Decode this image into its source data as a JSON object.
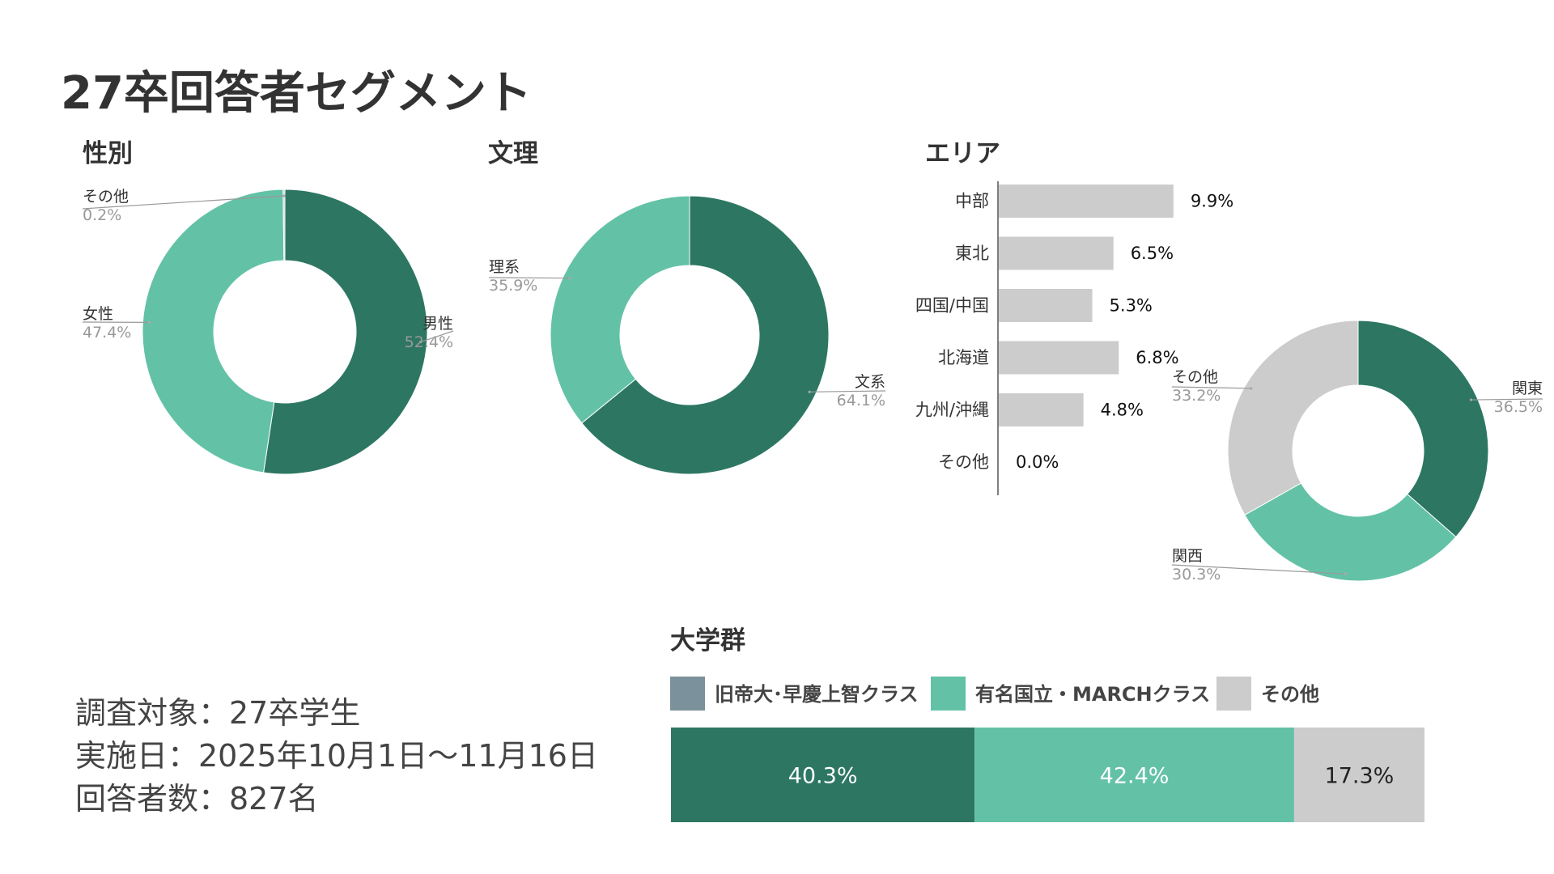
{
  "page": {
    "title": "27卒回答者セグメント"
  },
  "info": {
    "target": "調査対象：27卒学生",
    "date": "実施日：2025年10月1日〜11月16日",
    "count": "回答者数：827名"
  },
  "colors": {
    "dark": "#2d7762",
    "light": "#63c2a6",
    "grey": "#cccccc",
    "slate": "#7b919b"
  },
  "chart_data": [
    {
      "id": "gender",
      "type": "pie",
      "title": "性別",
      "slices": [
        {
          "label": "男性",
          "value": 52.4,
          "pct": "52.4%",
          "color": "#2d7762"
        },
        {
          "label": "女性",
          "value": 47.4,
          "pct": "47.4%",
          "color": "#63c2a6"
        },
        {
          "label": "その他",
          "value": 0.2,
          "pct": "0.2%",
          "color": "#cccccc"
        }
      ]
    },
    {
      "id": "major",
      "type": "pie",
      "title": "文理",
      "slices": [
        {
          "label": "文系",
          "value": 64.1,
          "pct": "64.1%",
          "color": "#2d7762"
        },
        {
          "label": "理系",
          "value": 35.9,
          "pct": "35.9%",
          "color": "#63c2a6"
        }
      ]
    },
    {
      "id": "area-bar",
      "type": "bar",
      "title": "エリア",
      "categories": [
        "中部",
        "東北",
        "四国/中国",
        "北海道",
        "九州/沖縄",
        "その他"
      ],
      "values": [
        9.9,
        6.5,
        5.3,
        6.8,
        4.8,
        0.0
      ],
      "value_labels": [
        "9.9%",
        "6.5%",
        "5.3%",
        "6.8%",
        "4.8%",
        "0.0%"
      ],
      "color": "#cccccc"
    },
    {
      "id": "area-pie",
      "type": "pie",
      "title": "",
      "slices": [
        {
          "label": "関東",
          "value": 36.5,
          "pct": "36.5%",
          "color": "#2d7762"
        },
        {
          "label": "関西",
          "value": 30.3,
          "pct": "30.3%",
          "color": "#63c2a6"
        },
        {
          "label": "その他",
          "value": 33.2,
          "pct": "33.2%",
          "color": "#cccccc"
        }
      ]
    },
    {
      "id": "university",
      "type": "bar",
      "orientation": "stacked-horizontal",
      "title": "大学群",
      "legend": [
        {
          "label": "旧帝大･早慶上智クラス",
          "color": "#7b919b"
        },
        {
          "label": "有名国立・MARCHクラス",
          "color": "#63c2a6"
        },
        {
          "label": "その他",
          "color": "#cccccc"
        }
      ],
      "segments": [
        {
          "value": 40.3,
          "label": "40.3%",
          "color": "#2d7762",
          "text_color": "#ffffff"
        },
        {
          "value": 42.4,
          "label": "42.4%",
          "color": "#63c2a6",
          "text_color": "#ffffff"
        },
        {
          "value": 17.3,
          "label": "17.3%",
          "color": "#cccccc",
          "text_color": "#222222"
        }
      ]
    }
  ]
}
